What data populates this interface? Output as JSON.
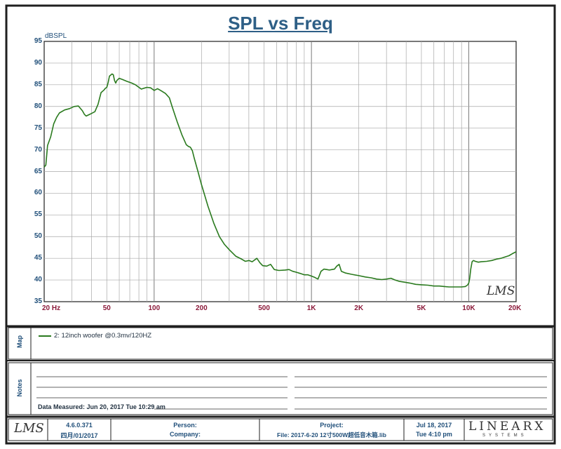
{
  "chart_data": {
    "type": "line",
    "title": "SPL vs Freq",
    "ylabel": "dBSPL",
    "xscale": "log",
    "xlim": [
      20,
      20000
    ],
    "ylim": [
      35,
      95
    ],
    "grid": true,
    "yticks": [
      35,
      40,
      45,
      50,
      55,
      60,
      65,
      70,
      75,
      80,
      85,
      90,
      95
    ],
    "xticks": [
      {
        "value": 20,
        "label": "20  Hz"
      },
      {
        "value": 50,
        "label": "50"
      },
      {
        "value": 100,
        "label": "100"
      },
      {
        "value": 200,
        "label": "200"
      },
      {
        "value": 500,
        "label": "500"
      },
      {
        "value": 1000,
        "label": "1K"
      },
      {
        "value": 2000,
        "label": "2K"
      },
      {
        "value": 5000,
        "label": "5K"
      },
      {
        "value": 10000,
        "label": "10K"
      },
      {
        "value": 20000,
        "label": "20K"
      }
    ],
    "series": [
      {
        "name": "2: 12inch woofer @0.3mv/120HZ",
        "color": "#2a7a1e",
        "points": [
          [
            20,
            66
          ],
          [
            20.5,
            66.5
          ],
          [
            21,
            71
          ],
          [
            22,
            73
          ],
          [
            23,
            76
          ],
          [
            24,
            77.5
          ],
          [
            25,
            78.5
          ],
          [
            27,
            79.2
          ],
          [
            29,
            79.5
          ],
          [
            31,
            80
          ],
          [
            33,
            80.1
          ],
          [
            35,
            79
          ],
          [
            36,
            78.2
          ],
          [
            37,
            77.8
          ],
          [
            39,
            78.2
          ],
          [
            42,
            78.8
          ],
          [
            44,
            80.5
          ],
          [
            46,
            83.2
          ],
          [
            48,
            83.8
          ],
          [
            49,
            84.2
          ],
          [
            50,
            84.4
          ],
          [
            51,
            85.5
          ],
          [
            52,
            87
          ],
          [
            54,
            87.5
          ],
          [
            55,
            87.3
          ],
          [
            56,
            86
          ],
          [
            57,
            85.4
          ],
          [
            58,
            86
          ],
          [
            60,
            86.5
          ],
          [
            63,
            86.2
          ],
          [
            67,
            85.8
          ],
          [
            72,
            85.4
          ],
          [
            76,
            85
          ],
          [
            80,
            84.4
          ],
          [
            83,
            84
          ],
          [
            86,
            84.2
          ],
          [
            90,
            84.4
          ],
          [
            95,
            84.3
          ],
          [
            100,
            83.7
          ],
          [
            105,
            84.1
          ],
          [
            110,
            83.7
          ],
          [
            118,
            83
          ],
          [
            125,
            82
          ],
          [
            130,
            80
          ],
          [
            140,
            76.5
          ],
          [
            150,
            73.5
          ],
          [
            160,
            71.2
          ],
          [
            165,
            70.8
          ],
          [
            170,
            70.6
          ],
          [
            175,
            69.8
          ],
          [
            180,
            68
          ],
          [
            190,
            65
          ],
          [
            200,
            62
          ],
          [
            220,
            57
          ],
          [
            240,
            53
          ],
          [
            260,
            50
          ],
          [
            280,
            48.2
          ],
          [
            300,
            47
          ],
          [
            330,
            45.5
          ],
          [
            360,
            44.8
          ],
          [
            380,
            44.3
          ],
          [
            400,
            44.5
          ],
          [
            420,
            44.2
          ],
          [
            450,
            45
          ],
          [
            470,
            44
          ],
          [
            490,
            43.3
          ],
          [
            520,
            43.2
          ],
          [
            550,
            43.6
          ],
          [
            580,
            42.4
          ],
          [
            620,
            42.2
          ],
          [
            680,
            42.3
          ],
          [
            720,
            42.4
          ],
          [
            760,
            42
          ],
          [
            800,
            41.8
          ],
          [
            850,
            41.5
          ],
          [
            900,
            41.2
          ],
          [
            950,
            41.2
          ],
          [
            1000,
            40.9
          ],
          [
            1050,
            40.6
          ],
          [
            1100,
            40.2
          ],
          [
            1150,
            42
          ],
          [
            1200,
            42.5
          ],
          [
            1250,
            42.4
          ],
          [
            1300,
            42.3
          ],
          [
            1350,
            42.4
          ],
          [
            1400,
            42.5
          ],
          [
            1450,
            43.2
          ],
          [
            1500,
            43.6
          ],
          [
            1550,
            42
          ],
          [
            1650,
            41.6
          ],
          [
            1800,
            41.3
          ],
          [
            2000,
            41
          ],
          [
            2200,
            40.7
          ],
          [
            2400,
            40.5
          ],
          [
            2600,
            40.2
          ],
          [
            2800,
            40.1
          ],
          [
            3000,
            40.2
          ],
          [
            3200,
            40.4
          ],
          [
            3400,
            40
          ],
          [
            3600,
            39.7
          ],
          [
            3900,
            39.5
          ],
          [
            4200,
            39.3
          ],
          [
            4600,
            39
          ],
          [
            5000,
            38.9
          ],
          [
            5500,
            38.8
          ],
          [
            6000,
            38.6
          ],
          [
            6500,
            38.6
          ],
          [
            7000,
            38.5
          ],
          [
            7500,
            38.4
          ],
          [
            8000,
            38.4
          ],
          [
            8500,
            38.4
          ],
          [
            9000,
            38.4
          ],
          [
            9500,
            38.5
          ],
          [
            9800,
            38.8
          ],
          [
            10000,
            39.3
          ],
          [
            10150,
            40.5
          ],
          [
            10300,
            42.5
          ],
          [
            10500,
            44.2
          ],
          [
            10700,
            44.5
          ],
          [
            11000,
            44.3
          ],
          [
            11500,
            44.1
          ],
          [
            12000,
            44.2
          ],
          [
            13000,
            44.3
          ],
          [
            14000,
            44.5
          ],
          [
            15000,
            44.8
          ],
          [
            16000,
            45
          ],
          [
            17000,
            45.3
          ],
          [
            18000,
            45.6
          ],
          [
            19000,
            46.1
          ],
          [
            20000,
            46.5
          ]
        ]
      }
    ]
  },
  "map": {
    "label": "Map",
    "legend_text": "2: 12inch woofer @0.3mv/120HZ"
  },
  "notes": {
    "label": "Notes",
    "measured": "Data Measured: Jun 20, 2017  Tue 10:29 am"
  },
  "footer": {
    "lms_left": "LMS",
    "lms_plot": "LMS",
    "version": "4.6.0.371",
    "version_date": "四月/01/2017",
    "person": "Person:",
    "company": "Company:",
    "project": "Project:",
    "file": "File: 2017-6-20 12寸500W超低音木箱.lib",
    "date": "Jul 18, 2017",
    "time": "Tue  4:10 pm",
    "brand": "LINEARX",
    "brand_sub": "SYSTEMS"
  },
  "colors": {
    "frame": "#1f1f1f",
    "grid": "#9a9a9a",
    "title": "#2e5f86",
    "axis_text": "#1f4e79",
    "freq_text": "#8b1a3a",
    "trace": "#2a7a1e"
  }
}
